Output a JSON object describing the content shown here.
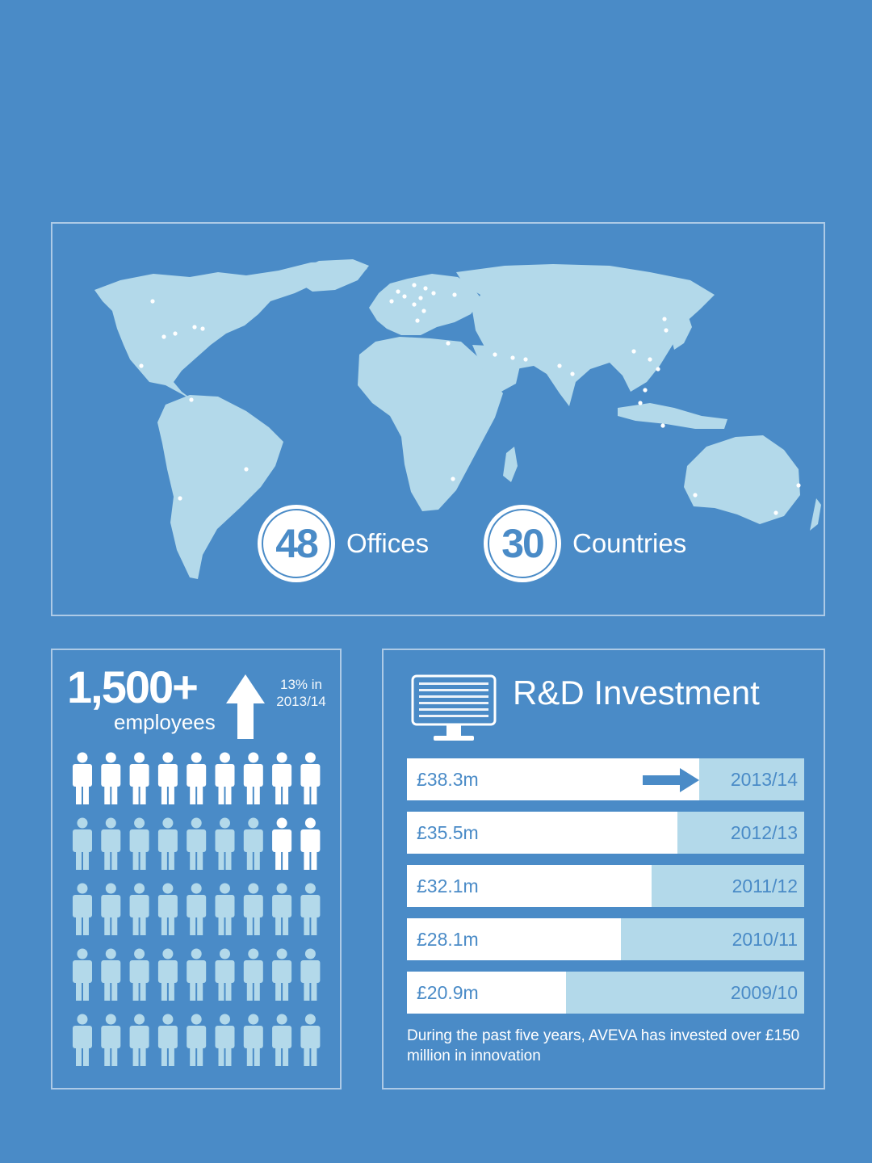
{
  "colors": {
    "background": "#4a8bc7",
    "land": "#b3d9ea",
    "white": "#ffffff",
    "person_highlight": "#ffffff",
    "person_default": "#b3d9ea"
  },
  "map": {
    "offices": {
      "value": "48",
      "label": "Offices"
    },
    "countries": {
      "value": "30",
      "label": "Countries"
    }
  },
  "employees": {
    "count": "1,500+",
    "label": "employees",
    "growth_line1": "13% in",
    "growth_line2": "2013/14",
    "icon": "up-arrow-icon",
    "people_icon": "person-icon",
    "grid_rows": 5,
    "grid_cols": 9,
    "highlighted_count": 11
  },
  "rd": {
    "title": "R&D Investment",
    "icon": "monitor-binary-icon",
    "note": "During the past five years, AVEVA has invested over £150 million in innovation"
  },
  "chart_data": {
    "type": "bar",
    "orientation": "horizontal",
    "title": "R&D Investment",
    "unit": "£m",
    "categories": [
      "2013/14",
      "2012/13",
      "2011/12",
      "2010/11",
      "2009/10"
    ],
    "values": [
      38.3,
      35.5,
      32.1,
      28.1,
      20.9
    ],
    "value_labels": [
      "£38.3m",
      "£35.5m",
      "£32.1m",
      "£28.1m",
      "£20.9m"
    ],
    "xlim": [
      0,
      50
    ],
    "highlight_arrow_on": "2013/14"
  }
}
